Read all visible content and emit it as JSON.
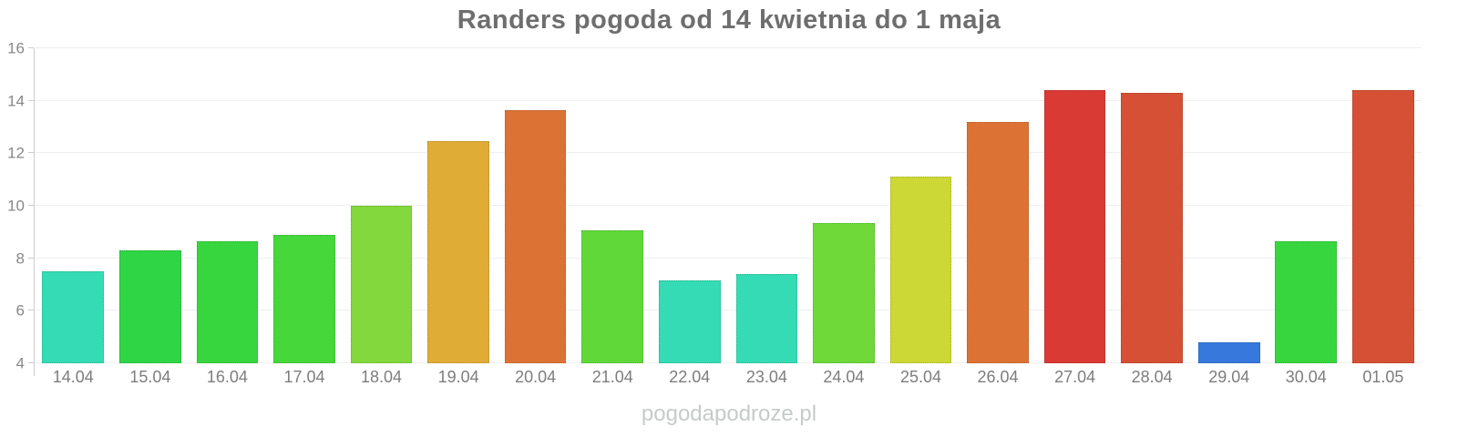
{
  "page": {
    "watermark": "pogodapodroze.pl"
  },
  "chart_data": {
    "type": "bar",
    "title": "Randers pogoda od 14 kwietnia do 1 maja",
    "categories": [
      "14.04",
      "15.04",
      "16.04",
      "17.04",
      "18.04",
      "19.04",
      "20.04",
      "21.04",
      "22.04",
      "23.04",
      "24.04",
      "25.04",
      "26.04",
      "27.04",
      "28.04",
      "29.04",
      "30.04",
      "01.05"
    ],
    "values": [
      7.5,
      8.3,
      8.65,
      8.9,
      10.0,
      12.45,
      13.65,
      9.05,
      7.15,
      7.4,
      9.35,
      11.1,
      13.2,
      14.4,
      14.3,
      4.8,
      8.65,
      14.4
    ],
    "bar_colors": [
      "#35dbb4",
      "#30d546",
      "#38d63e",
      "#46d73b",
      "#82d83c",
      "#dfac35",
      "#dc7335",
      "#60d83a",
      "#35dbb4",
      "#35dbb4",
      "#6ed939",
      "#ccd835",
      "#dc7335",
      "#d93a33",
      "#d55034",
      "#3678dc",
      "#38d63e",
      "#d55034"
    ],
    "xlabel": "",
    "ylabel": "",
    "ylim": [
      4,
      16
    ],
    "yticks": [
      16,
      14,
      12,
      10,
      8,
      6,
      4
    ],
    "grid": true,
    "legend": false
  },
  "style": {
    "title_color": "#6e6e6e",
    "axis_line_color": "#cccccc",
    "gridline_color": "#efefef",
    "y_label_color": "#888888",
    "x_label_color": "#7d7d7d",
    "watermark_color": "#c6cbc8",
    "background": "#ffffff"
  }
}
